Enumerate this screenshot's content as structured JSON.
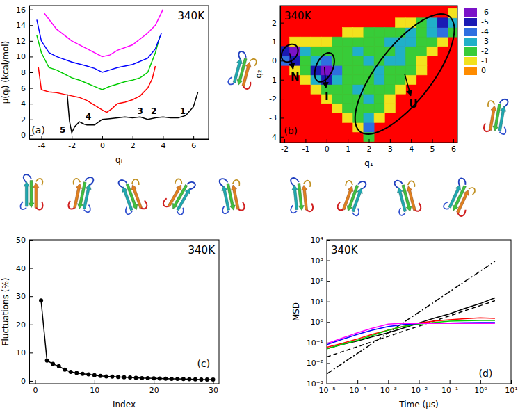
{
  "chart_data": [
    {
      "type": "line",
      "title": "340K",
      "xlabel": "qᵢ",
      "ylabel": "μ(qᵢ) (kcal/mol)",
      "xlim": [
        -4.8,
        7.0
      ],
      "ylim": [
        -0.5,
        16.5
      ],
      "xticks": [
        -4,
        -2,
        0,
        2,
        4,
        6
      ],
      "yticks": [
        0,
        2,
        4,
        6,
        8,
        10,
        12,
        14,
        16
      ],
      "series": [
        {
          "color": "#000000",
          "x": [
            -2.3,
            -2.15,
            -2.0,
            -1.8,
            -1.5,
            -1.2,
            -1.0,
            -0.5,
            0,
            0.5,
            1,
            1.5,
            2,
            2.5,
            3,
            3.5,
            4,
            4.5,
            5,
            5.5,
            6,
            6.3
          ],
          "values": [
            5.2,
            1.8,
            0.3,
            1.1,
            1.7,
            1.4,
            1.3,
            1.3,
            2.0,
            2.1,
            2.2,
            2.3,
            2.2,
            2.3,
            2.0,
            2.2,
            2.3,
            2.2,
            2.2,
            2.5,
            3.6,
            5.5
          ]
        },
        {
          "color": "#ff0000",
          "x": [
            -4.2,
            -4.0,
            -3.5,
            -3.0,
            -2.5,
            -2.0,
            -1.5,
            -1.0,
            -0.5,
            0,
            0.3,
            0.6,
            1.0,
            1.5,
            2.0,
            2.5,
            3.0,
            3.3,
            3.5
          ],
          "values": [
            8.7,
            5.8,
            5.5,
            5.4,
            5.2,
            5.0,
            4.8,
            4.4,
            3.8,
            3.2,
            2.9,
            3.3,
            4.0,
            4.2,
            4.5,
            5.0,
            6.0,
            7.2,
            8.8
          ]
        },
        {
          "color": "#00cc00",
          "x": [
            -4.3,
            -4.0,
            -3.5,
            -3.0,
            -2.5,
            -2.0,
            -1.5,
            -1.0,
            -0.5,
            0,
            0.5,
            1.0,
            1.5,
            2.0,
            2.5,
            3.0,
            3.5,
            3.8
          ],
          "values": [
            12.7,
            10.5,
            8.6,
            8.3,
            7.8,
            7.3,
            7.0,
            6.6,
            6.2,
            5.8,
            6.2,
            6.5,
            6.8,
            7.0,
            7.3,
            8.0,
            10.5,
            12.6
          ]
        },
        {
          "color": "#0000ff",
          "x": [
            -4.3,
            -4.0,
            -3.5,
            -3.0,
            -2.0,
            -1.0,
            -0.5,
            0,
            0.5,
            1.0,
            2.0,
            3.0,
            3.5,
            3.9
          ],
          "values": [
            14.7,
            12.0,
            10.5,
            10.0,
            9.3,
            8.8,
            8.5,
            8.0,
            8.3,
            8.6,
            9.0,
            9.8,
            11.0,
            13.0
          ]
        },
        {
          "color": "#ff00ff",
          "x": [
            -3.8,
            -3.0,
            -2.0,
            -1.0,
            0,
            0.5,
            1.0,
            2.0,
            3.0,
            3.5,
            4.0
          ],
          "values": [
            15.5,
            13.5,
            12.0,
            11.0,
            10.0,
            10.2,
            10.8,
            11.5,
            13.0,
            14.0,
            16.0
          ]
        }
      ],
      "annotations": [
        {
          "text": "1",
          "x": 5.3,
          "y": 3.0
        },
        {
          "text": "2",
          "x": 3.4,
          "y": 3.0
        },
        {
          "text": "3",
          "x": 2.5,
          "y": 3.0
        },
        {
          "text": "4",
          "x": -0.9,
          "y": 2.3
        },
        {
          "text": "5",
          "x": -2.6,
          "y": 0.6
        },
        {
          "text": "(a)",
          "x": -4.2,
          "y": 0.6
        }
      ]
    },
    {
      "type": "heatmap",
      "title": "340K",
      "xlabel": "q₁",
      "ylabel": "q₂",
      "xlim": [
        -2.2,
        6.2
      ],
      "ylim": [
        -4.3,
        2.9
      ],
      "xticks": [
        -2,
        -1,
        0,
        1,
        2,
        3,
        4,
        5,
        6
      ],
      "yticks": [
        -4,
        -3,
        -2,
        -1,
        0,
        1,
        2
      ],
      "x": [
        -2,
        -1.5,
        -1,
        -0.5,
        0,
        0.5,
        1,
        1.5,
        2,
        2.5,
        3,
        3.5,
        4,
        4.5,
        5,
        5.5,
        6
      ],
      "y": [
        -4,
        -3.5,
        -3,
        -2.5,
        -2,
        -1.5,
        -1,
        -0.5,
        0,
        0.5,
        1,
        1.5,
        2,
        2.5
      ],
      "z": [
        [
          null,
          null,
          null,
          null,
          null,
          null,
          null,
          null,
          -2,
          null,
          null,
          null,
          null,
          null,
          null,
          null,
          null
        ],
        [
          null,
          null,
          null,
          null,
          null,
          null,
          null,
          -1,
          -4,
          null,
          null,
          null,
          null,
          null,
          null,
          null,
          null
        ],
        [
          null,
          null,
          null,
          null,
          null,
          null,
          -1,
          -2,
          -3,
          -1,
          null,
          null,
          null,
          null,
          null,
          null,
          null
        ],
        [
          null,
          null,
          null,
          null,
          null,
          -1,
          -2,
          -2,
          -2,
          -2,
          -1,
          null,
          null,
          null,
          null,
          null,
          null
        ],
        [
          null,
          null,
          null,
          null,
          -1,
          -2,
          -2,
          -2,
          -3,
          -2,
          -1,
          null,
          null,
          null,
          null,
          null,
          null
        ],
        [
          null,
          null,
          null,
          -1,
          -2,
          -2,
          -2,
          -3,
          -2,
          -2,
          -2,
          -1,
          null,
          null,
          null,
          null,
          null
        ],
        [
          null,
          null,
          -1,
          -3,
          -5,
          -3,
          -2,
          -2,
          -2,
          -3,
          -2,
          -2,
          -1,
          null,
          null,
          null,
          null
        ],
        [
          null,
          -1,
          -2,
          -5,
          -6,
          -4,
          -2,
          -2,
          -2,
          -3,
          -2,
          -2,
          -2,
          -1,
          null,
          null,
          null
        ],
        [
          -4,
          -5,
          -2,
          -3,
          -4,
          -2,
          -2,
          -2,
          -3,
          -2,
          -3,
          -3,
          -2,
          -1,
          null,
          null,
          null
        ],
        [
          -5,
          -6,
          -3,
          -2,
          -2,
          -2,
          -2,
          -3,
          -2,
          -2,
          -2,
          -3,
          -2,
          -2,
          -1,
          null,
          null
        ],
        [
          null,
          -1,
          -1,
          -1,
          -1,
          -2,
          -2,
          -2,
          -2,
          -2,
          -3,
          -3,
          -3,
          -2,
          -2,
          -1,
          null
        ],
        [
          null,
          null,
          null,
          null,
          null,
          null,
          -1,
          -1,
          -2,
          -2,
          -2,
          -2,
          -3,
          -2,
          -3,
          -4,
          -2
        ],
        [
          null,
          null,
          null,
          null,
          null,
          null,
          null,
          null,
          null,
          null,
          null,
          -1,
          -1,
          -2,
          -3,
          -5,
          -3
        ],
        [
          null,
          null,
          null,
          null,
          null,
          null,
          null,
          null,
          null,
          null,
          null,
          null,
          null,
          null,
          null,
          null,
          -1
        ]
      ],
      "colorbar": {
        "ticks": [
          -6,
          -5,
          -4,
          -3,
          -2,
          -1,
          0
        ],
        "colors": [
          "#7a12c8",
          "#1a1ab4",
          "#2e6fe0",
          "#20b0c8",
          "#38cc38",
          "#f2e21e",
          "#ff8c00"
        ]
      },
      "regions": [
        {
          "label": "N",
          "center": [
            -1.75,
            0.4
          ],
          "semi_axes": [
            0.5,
            0.35
          ],
          "tilt": 60,
          "label_at": [
            -1.5,
            -0.9
          ]
        },
        {
          "label": "I",
          "center": [
            -0.1,
            -0.35
          ],
          "semi_axes": [
            0.8,
            0.4
          ],
          "tilt": 70,
          "label_at": [
            0.0,
            -1.9
          ]
        },
        {
          "label": "U",
          "center": [
            3.7,
            -0.7
          ],
          "semi_axes": [
            3.7,
            1.35
          ],
          "tilt": 56,
          "label_at": [
            4.1,
            -2.3
          ]
        }
      ],
      "annotations": [
        {
          "text": "(b)",
          "x": -1.7,
          "y": -3.7
        }
      ]
    },
    {
      "type": "line",
      "title": "340K",
      "xlabel": "Index",
      "ylabel": "Fluctuations (%)",
      "xlim": [
        -1,
        31
      ],
      "ylim": [
        -1,
        50
      ],
      "xticks": [
        0,
        10,
        20,
        30
      ],
      "yticks": [
        0,
        10,
        20,
        30,
        40,
        50
      ],
      "series": [
        {
          "color": "#000000",
          "marker": "circle",
          "x": [
            1,
            2,
            3,
            4,
            5,
            6,
            7,
            8,
            9,
            10,
            11,
            12,
            13,
            14,
            15,
            16,
            17,
            18,
            19,
            20,
            21,
            22,
            23,
            24,
            25,
            26,
            27,
            28,
            29,
            30
          ],
          "values": [
            28.5,
            7.2,
            6.0,
            5.2,
            4.0,
            3.2,
            2.8,
            2.5,
            2.3,
            2.0,
            1.8,
            1.6,
            1.5,
            1.4,
            1.3,
            1.2,
            1.1,
            1.0,
            0.95,
            0.9,
            0.85,
            0.8,
            0.75,
            0.7,
            0.65,
            0.6,
            0.55,
            0.5,
            0.48,
            0.45
          ]
        }
      ],
      "annotations": [
        {
          "text": "(c)",
          "x": 29.5,
          "y": 6
        }
      ]
    },
    {
      "type": "line",
      "log": true,
      "title": "340K",
      "xlabel": "Time (μs)",
      "ylabel": "MSD",
      "xlim": [
        1e-05,
        10
      ],
      "ylim": [
        0.001,
        10000
      ],
      "xticks": [
        {
          "value": 1e-05,
          "label": "10⁻⁵"
        },
        {
          "value": 0.0001,
          "label": "10⁻⁴"
        },
        {
          "value": 0.001,
          "label": "10⁻³"
        },
        {
          "value": 0.01,
          "label": "10⁻²"
        },
        {
          "value": 0.1,
          "label": "10⁻¹"
        },
        {
          "value": 1,
          "label": "10⁰"
        },
        {
          "value": 10,
          "label": "10¹"
        }
      ],
      "yticks": [
        {
          "value": 0.001,
          "label": "10⁻³"
        },
        {
          "value": 0.01,
          "label": "10⁻²"
        },
        {
          "value": 0.1,
          "label": "10⁻¹"
        },
        {
          "value": 1,
          "label": "10⁰"
        },
        {
          "value": 10,
          "label": "10¹"
        },
        {
          "value": 100,
          "label": "10²"
        },
        {
          "value": 1000,
          "label": "10³"
        },
        {
          "value": 10000,
          "label": "10⁴"
        }
      ],
      "series": [
        {
          "color": "#000000",
          "line_style": "solid",
          "x": [
            1e-05,
            3e-05,
            0.0001,
            0.0003,
            0.001,
            0.003,
            0.01,
            0.03,
            0.1,
            0.3,
            1,
            3
          ],
          "values": [
            0.05,
            0.08,
            0.12,
            0.19,
            0.3,
            0.5,
            0.9,
            1.5,
            2.5,
            4.5,
            8,
            15
          ]
        },
        {
          "color": "#000000",
          "line_style": "dashed",
          "x": [
            1e-05,
            3e-05,
            0.0001,
            0.0003,
            0.001,
            0.003,
            0.01,
            0.03,
            0.1,
            0.3,
            1,
            3
          ],
          "values": [
            0.02,
            0.035,
            0.063,
            0.11,
            0.2,
            0.35,
            0.63,
            1.1,
            2,
            3.5,
            6.3,
            11
          ]
        },
        {
          "color": "#000000",
          "line_style": "dashdot",
          "x": [
            1e-05,
            3e-05,
            0.0001,
            0.0003,
            0.001,
            0.003,
            0.01,
            0.03,
            0.1,
            0.3,
            1,
            3
          ],
          "values": [
            0.003,
            0.009,
            0.03,
            0.09,
            0.3,
            0.9,
            3,
            9,
            30,
            90,
            300,
            900
          ]
        },
        {
          "color": "#ff0000",
          "line_style": "solid",
          "x": [
            1e-05,
            3e-05,
            0.0001,
            0.0003,
            0.001,
            0.003,
            0.01,
            0.03,
            0.1,
            0.3,
            1,
            3
          ],
          "values": [
            0.06,
            0.09,
            0.15,
            0.25,
            0.4,
            0.6,
            0.9,
            1.1,
            1.3,
            1.45,
            1.6,
            1.5
          ]
        },
        {
          "color": "#00cc00",
          "line_style": "solid",
          "x": [
            1e-05,
            3e-05,
            0.0001,
            0.0003,
            0.001,
            0.003,
            0.01,
            0.03,
            0.1,
            0.3,
            1,
            3
          ],
          "values": [
            0.05,
            0.08,
            0.13,
            0.22,
            0.4,
            0.6,
            0.8,
            0.95,
            1.1,
            1.15,
            1.2,
            1.2
          ]
        },
        {
          "color": "#0000ff",
          "line_style": "solid",
          "x": [
            1e-05,
            3e-05,
            0.0001,
            0.0003,
            0.001,
            0.003,
            0.01,
            0.03,
            0.1,
            0.3,
            1,
            3
          ],
          "values": [
            0.08,
            0.14,
            0.25,
            0.4,
            0.6,
            0.75,
            0.85,
            0.88,
            0.9,
            0.93,
            0.95,
            0.95
          ]
        },
        {
          "color": "#ff00ff",
          "line_style": "solid",
          "x": [
            1e-05,
            3e-05,
            0.0001,
            0.0003,
            0.001,
            0.003,
            0.01,
            0.03,
            0.1,
            0.3,
            1,
            3
          ],
          "values": [
            0.09,
            0.16,
            0.3,
            0.5,
            0.8,
            0.88,
            0.85,
            0.85,
            0.85,
            0.85,
            0.85,
            0.85
          ]
        }
      ],
      "annotations": [
        {
          "text": "(d)",
          "x": 2.5,
          "y": 0.003
        }
      ]
    }
  ]
}
